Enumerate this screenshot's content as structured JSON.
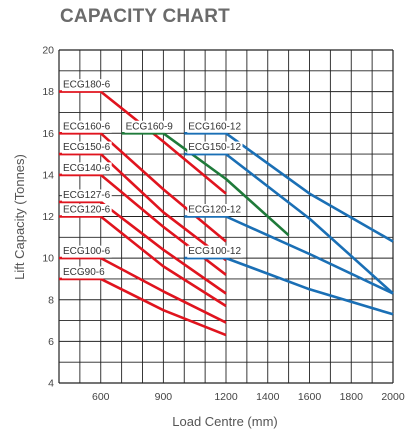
{
  "page": {
    "title": "CAPACITY CHART"
  },
  "chart_data": {
    "type": "line",
    "title": "CAPACITY CHART",
    "xlabel": "Load Centre (mm)",
    "ylabel": "Lift Capacity (Tonnes)",
    "xlim": [
      400,
      2000
    ],
    "ylim": [
      4,
      20
    ],
    "x_ticks": [
      600,
      900,
      1200,
      1400,
      1600,
      1800,
      2000
    ],
    "y_ticks": [
      4,
      6,
      8,
      10,
      12,
      14,
      16,
      18,
      20
    ],
    "grid": true,
    "colors": {
      "red": "#e0141e",
      "green": "#1f7a3a",
      "blue": "#1a6fb5",
      "grid": "#222222"
    },
    "series": [
      {
        "name": "ECG180-6",
        "color": "red",
        "x": [
          400,
          600,
          900,
          1200
        ],
        "y": [
          18,
          18,
          15.6,
          13.1
        ]
      },
      {
        "name": "ECG160-6",
        "color": "red",
        "x": [
          400,
          600,
          900,
          1200
        ],
        "y": [
          16,
          16,
          13.3,
          10.8
        ]
      },
      {
        "name": "ECG150-6",
        "color": "red",
        "x": [
          400,
          600,
          900,
          1200
        ],
        "y": [
          15,
          15,
          12.2,
          9.9
        ]
      },
      {
        "name": "ECG140-6",
        "color": "red",
        "x": [
          400,
          600,
          900,
          1200
        ],
        "y": [
          14,
          14,
          11.5,
          9.2
        ]
      },
      {
        "name": "ECG127-6",
        "color": "red",
        "x": [
          400,
          600,
          900,
          1200
        ],
        "y": [
          12.7,
          12.7,
          10.4,
          8.3
        ]
      },
      {
        "name": "ECG120-6",
        "color": "red",
        "x": [
          400,
          600,
          900,
          1200
        ],
        "y": [
          12,
          12,
          9.6,
          7.7
        ]
      },
      {
        "name": "ECG100-6",
        "color": "red",
        "x": [
          400,
          600,
          900,
          1200
        ],
        "y": [
          10,
          10,
          8.4,
          6.9
        ]
      },
      {
        "name": "ECG90-6",
        "color": "red",
        "x": [
          400,
          600,
          900,
          1200
        ],
        "y": [
          9,
          9,
          7.5,
          6.3
        ]
      },
      {
        "name": "ECG160-9",
        "color": "green",
        "x": [
          700,
          900,
          1200,
          1500
        ],
        "y": [
          16,
          16,
          13.8,
          11.1
        ]
      },
      {
        "name": "ECG160-12",
        "color": "blue",
        "x": [
          1000,
          1200,
          1600,
          2000
        ],
        "y": [
          16,
          16,
          13.1,
          10.8
        ]
      },
      {
        "name": "ECG150-12",
        "color": "blue",
        "x": [
          1000,
          1200,
          1600,
          2000
        ],
        "y": [
          15,
          15,
          11.9,
          8.3
        ]
      },
      {
        "name": "ECG120-12",
        "color": "blue",
        "x": [
          1000,
          1200,
          1600,
          2000
        ],
        "y": [
          12,
          12,
          10.2,
          8.3
        ]
      },
      {
        "name": "ECG100-12",
        "color": "blue",
        "x": [
          1000,
          1200,
          1600,
          2000
        ],
        "y": [
          10,
          10,
          8.5,
          7.3
        ]
      }
    ]
  }
}
